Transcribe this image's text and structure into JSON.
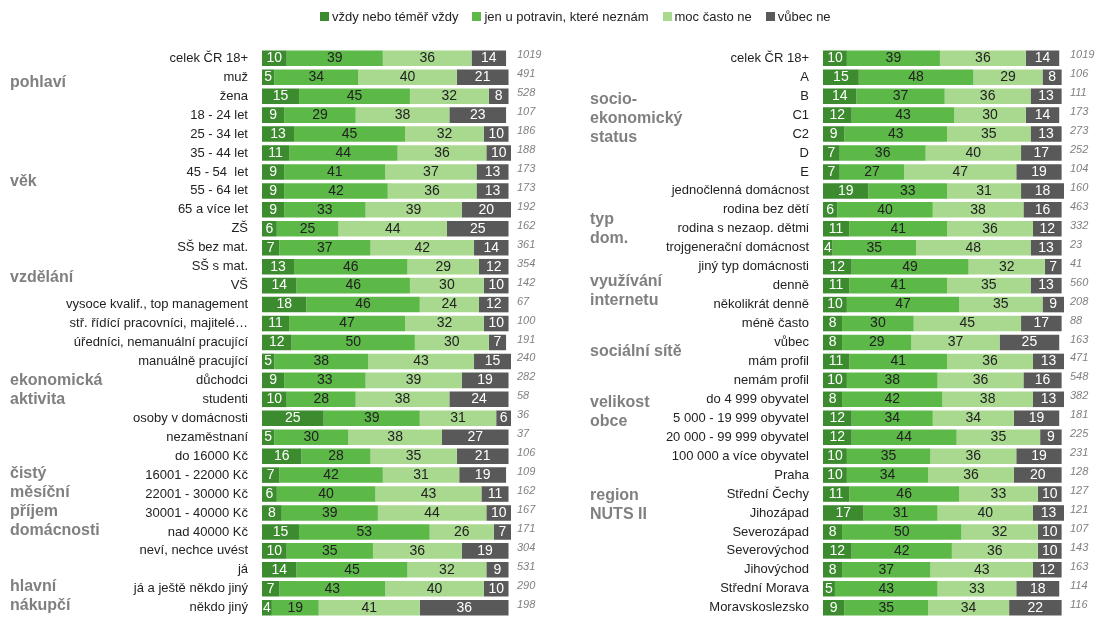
{
  "chart_data": [
    {
      "type": "bar",
      "orientation": "horizontal",
      "stacked": true,
      "legend": "top",
      "data_labels": true,
      "tick_labels": "y",
      "xlim": [
        0,
        101
      ],
      "categories": [
        "celek ČR 18+",
        "muž",
        "žena",
        "18 - 24 let",
        "25 - 34 let",
        "35 - 44 let",
        "45 - 54  let",
        "55 - 64 let",
        "65 a více let",
        "ZŠ",
        "SŠ bez mat.",
        "SŠ s mat.",
        "VŠ",
        "vysoce kvalif., top management",
        "stř. řídící pracovníci, majitelé…",
        "úředníci, nemanuální pracující",
        "manuálně pracující",
        "důchodci",
        "studenti",
        "osoby v domácnosti",
        "nezaměstnaní",
        "do 16000 Kč",
        "16001 - 22000 Kč",
        "22001 - 30000 Kč",
        "30001 - 40000 Kč",
        "nad 40000 Kč",
        "neví, nechce uvést",
        "já",
        "já a ještě někdo jiný",
        "někdo jiný"
      ],
      "series": [
        {
          "name": "vždy nebo téměř vždy",
          "color": "#3d8b2f",
          "values": [
            10,
            5,
            15,
            9,
            13,
            11,
            9,
            9,
            9,
            6,
            7,
            13,
            14,
            18,
            11,
            12,
            5,
            9,
            10,
            25,
            5,
            16,
            7,
            6,
            8,
            15,
            10,
            14,
            7,
            4
          ]
        },
        {
          "name": "jen u potravin, které neznám",
          "color": "#5cb847",
          "values": [
            39,
            34,
            45,
            29,
            45,
            44,
            41,
            42,
            33,
            25,
            37,
            46,
            46,
            46,
            47,
            50,
            38,
            33,
            28,
            39,
            30,
            28,
            42,
            40,
            39,
            53,
            35,
            45,
            43,
            19
          ]
        },
        {
          "name": "moc často ne",
          "color": "#a8d98e",
          "values": [
            36,
            40,
            32,
            38,
            32,
            36,
            37,
            36,
            39,
            44,
            42,
            29,
            30,
            24,
            32,
            30,
            43,
            39,
            38,
            31,
            38,
            35,
            31,
            43,
            44,
            26,
            36,
            32,
            40,
            41
          ]
        },
        {
          "name": "vůbec ne",
          "color": "#595959",
          "values": [
            14,
            21,
            8,
            23,
            10,
            10,
            13,
            13,
            20,
            25,
            14,
            12,
            10,
            12,
            10,
            7,
            15,
            19,
            24,
            6,
            27,
            21,
            19,
            11,
            10,
            7,
            19,
            9,
            10,
            36
          ]
        }
      ],
      "annotations": [
        "pohlaví",
        "věk",
        "vzdělání",
        "ekonomická\naktivita",
        "čistý\nměsíční\npříjem\ndomácnosti",
        "hlavní\nnákupčí",
        "1019",
        "491",
        "528",
        "107",
        "186",
        "188",
        "173",
        "173",
        "192",
        "162",
        "361",
        "354",
        "142",
        "67",
        "100",
        "191",
        "240",
        "282",
        "58",
        "36",
        "37",
        "106",
        "109",
        "162",
        "167",
        "171",
        "304",
        "531",
        "290",
        "198"
      ]
    },
    {
      "type": "bar",
      "orientation": "horizontal",
      "stacked": true,
      "data_labels": true,
      "tick_labels": "y",
      "xlim": [
        0,
        101
      ],
      "categories": [
        "celek ČR 18+",
        "A",
        "B",
        "C1",
        "C2",
        "D",
        "E",
        "jednočlenná domácnost",
        "rodina bez dětí",
        "rodina s nezaop. dětmi",
        "trojgenerační domácnost",
        "jiný typ domácnosti",
        "denně",
        "několikrát denně",
        "méně často",
        "vůbec",
        "mám profil",
        "nemám profil",
        "do 4 999 obyvatel",
        "5 000 - 19 999 obyvatel",
        "20 000 - 99 999 obyvatel",
        "100 000 a více obyvatel",
        "Praha",
        "Střední Čechy",
        "Jihozápad",
        "Severozápad",
        "Severovýchod",
        "Jihovýchod",
        "Střední Morava",
        "Moravskoslezsko"
      ],
      "series": [
        {
          "color": "#3d8b2f",
          "values": [
            10,
            15,
            14,
            12,
            9,
            7,
            7,
            19,
            6,
            11,
            4,
            12,
            11,
            10,
            8,
            8,
            11,
            10,
            8,
            12,
            12,
            10,
            10,
            11,
            17,
            8,
            12,
            8,
            5,
            9
          ]
        },
        {
          "color": "#5cb847",
          "values": [
            39,
            48,
            37,
            43,
            43,
            36,
            27,
            33,
            40,
            41,
            35,
            49,
            41,
            47,
            30,
            29,
            41,
            38,
            42,
            34,
            44,
            35,
            34,
            46,
            31,
            50,
            42,
            37,
            43,
            35
          ]
        },
        {
          "color": "#a8d98e",
          "values": [
            36,
            29,
            36,
            30,
            35,
            40,
            47,
            31,
            38,
            36,
            48,
            32,
            35,
            35,
            45,
            37,
            36,
            36,
            38,
            34,
            35,
            36,
            36,
            33,
            40,
            32,
            36,
            43,
            33,
            34
          ]
        },
        {
          "color": "#595959",
          "values": [
            14,
            8,
            13,
            14,
            13,
            17,
            19,
            18,
            16,
            12,
            13,
            7,
            13,
            9,
            17,
            25,
            13,
            16,
            13,
            19,
            9,
            19,
            20,
            10,
            13,
            10,
            10,
            12,
            18,
            22
          ]
        }
      ],
      "annotations": [
        "socio-\nekonomický\nstatus",
        "typ\ndom.",
        "využívání\ninternetu",
        "sociální sítě",
        "velikost\nobce",
        "region\nNUTS II",
        "1019",
        "106",
        "111",
        "173",
        "273",
        "252",
        "104",
        "160",
        "463",
        "332",
        "23",
        "41",
        "560",
        "208",
        "88",
        "163",
        "471",
        "548",
        "382",
        "181",
        "225",
        "231",
        "128",
        "127",
        "121",
        "107",
        "143",
        "163",
        "114",
        "116"
      ]
    }
  ]
}
